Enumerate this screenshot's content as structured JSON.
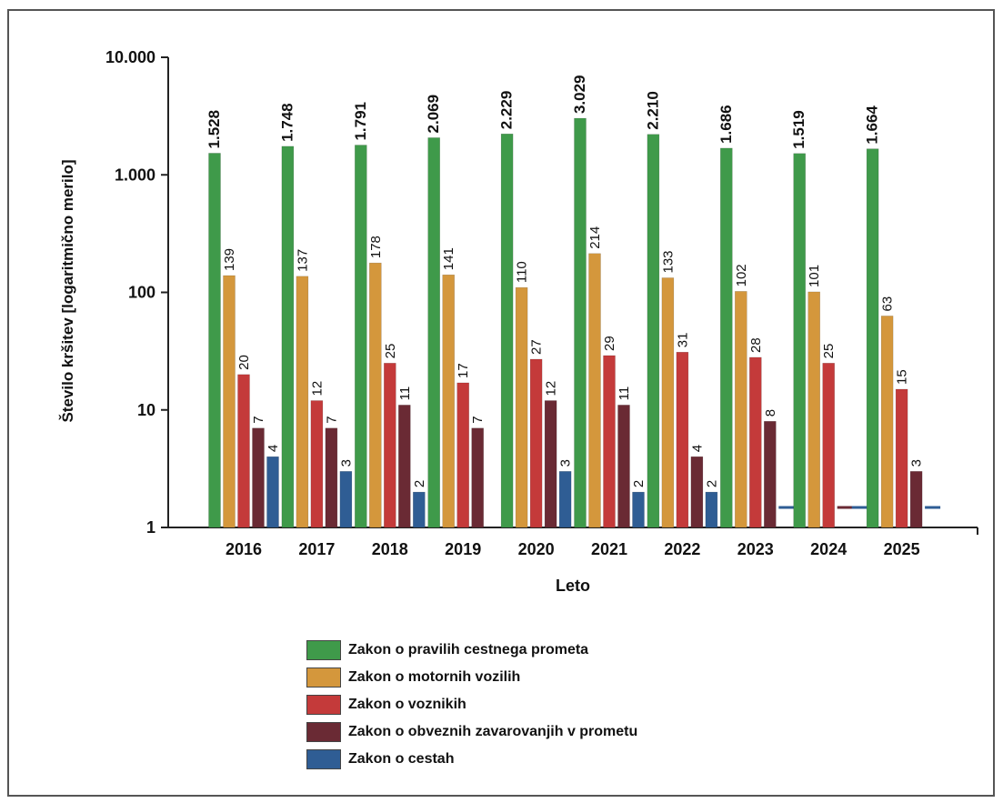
{
  "chart_data": {
    "type": "bar",
    "title": "",
    "xlabel": "Leto",
    "ylabel": "Število kršitev [logaritmično merilo]",
    "yscale": "log",
    "ylim": [
      1,
      10000
    ],
    "yticks": [
      {
        "value": 1,
        "label": "1"
      },
      {
        "value": 10,
        "label": "10"
      },
      {
        "value": 100,
        "label": "100"
      },
      {
        "value": 1000,
        "label": "1.000"
      },
      {
        "value": 10000,
        "label": "10.000"
      }
    ],
    "categories": [
      "2016",
      "2017",
      "2018",
      "2019",
      "2020",
      "2021",
      "2022",
      "2023",
      "2024",
      "2025"
    ],
    "legend_position": "bottom",
    "series": [
      {
        "name": "Zakon o pravilih cestnega prometa",
        "color": "#3f9a4a",
        "values": [
          1528,
          1748,
          1791,
          2069,
          2229,
          3029,
          2210,
          1686,
          1519,
          1664
        ],
        "labels": [
          "1.528",
          "1.748",
          "1.791",
          "2.069",
          "2.229",
          "3.029",
          "2.210",
          "1.686",
          "1.519",
          "1.664"
        ]
      },
      {
        "name": "Zakon o motornih vozilih",
        "color": "#d4973c",
        "values": [
          139,
          137,
          178,
          141,
          110,
          214,
          133,
          102,
          101,
          63
        ],
        "labels": [
          "139",
          "137",
          "178",
          "141",
          "110",
          "214",
          "133",
          "102",
          "101",
          "63"
        ]
      },
      {
        "name": "Zakon o voznikih",
        "color": "#c43a3a",
        "values": [
          20,
          12,
          25,
          17,
          27,
          29,
          31,
          28,
          25,
          15
        ],
        "labels": [
          "20",
          "12",
          "25",
          "17",
          "27",
          "29",
          "31",
          "28",
          "25",
          "15"
        ]
      },
      {
        "name": "Zakon o obveznih zavarovanjih v prometu",
        "color": "#6a2a34",
        "values": [
          7,
          7,
          11,
          7,
          12,
          11,
          4,
          8,
          1,
          3
        ],
        "labels": [
          "7",
          "7",
          "11",
          "7",
          "12",
          "11",
          "4",
          "8",
          "",
          "3"
        ]
      },
      {
        "name": "Zakon o cestah",
        "color": "#2f5d94",
        "values": [
          4,
          3,
          2,
          null,
          3,
          2,
          2,
          1,
          1,
          1
        ],
        "labels": [
          "4",
          "3",
          "2",
          "",
          "3",
          "2",
          "2",
          "1",
          "1",
          "1"
        ]
      }
    ]
  }
}
